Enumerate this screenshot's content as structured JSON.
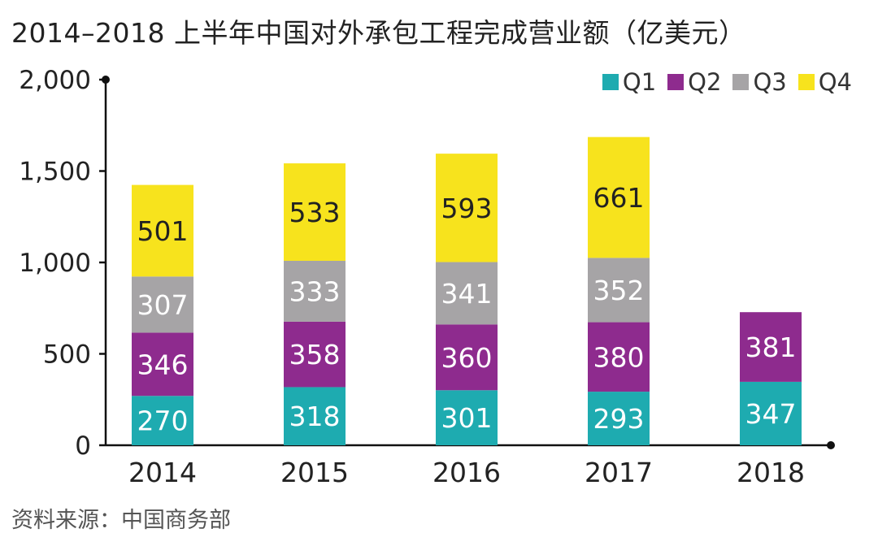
{
  "title": "2014–2018 上半年中国对外承包工程完成营业额（亿美元）",
  "source": "资料来源：中国商务部",
  "colors": {
    "Q1": "#1eabb0",
    "Q2": "#8e2b8e",
    "Q3": "#a6a4a6",
    "Q4": "#f7e31d",
    "axis": "#111111"
  },
  "chart_data": {
    "type": "bar",
    "stacked": true,
    "title": "2014–2018 上半年中国对外承包工程完成营业额（亿美元）",
    "xlabel": "",
    "ylabel": "",
    "categories": [
      "2014",
      "2015",
      "2016",
      "2017",
      "2018"
    ],
    "series": [
      {
        "name": "Q1",
        "values": [
          270,
          318,
          301,
          293,
          347
        ]
      },
      {
        "name": "Q2",
        "values": [
          346,
          358,
          360,
          380,
          381
        ]
      },
      {
        "name": "Q3",
        "values": [
          307,
          333,
          341,
          352,
          null
        ]
      },
      {
        "name": "Q4",
        "values": [
          501,
          533,
          593,
          661,
          null
        ]
      }
    ],
    "ylim": [
      0,
      2000
    ],
    "yticks": [
      0,
      500,
      1000,
      1500,
      2000
    ],
    "ytick_labels": [
      "0",
      "500",
      "1,000",
      "1,500",
      "2,000"
    ],
    "grid": false,
    "legend_position": "top-right",
    "data_labels": true
  }
}
